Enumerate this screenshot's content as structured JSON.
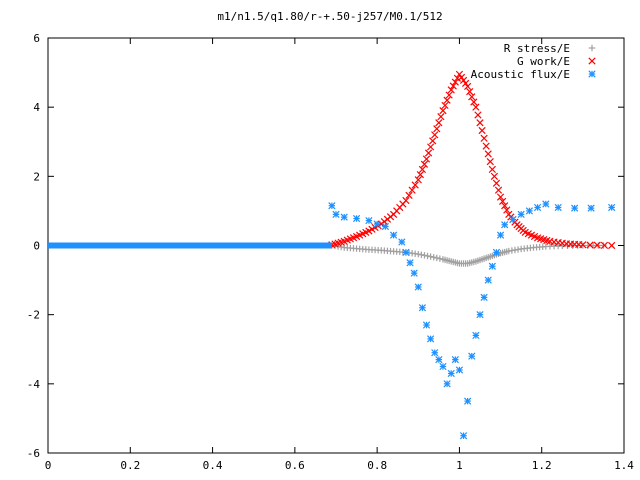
{
  "chart_data": {
    "type": "scatter",
    "title": "m1/n1.5/q1.80/r-+.50-j257/M0.1/512",
    "xlim": [
      0,
      1.4
    ],
    "ylim": [
      -6,
      6
    ],
    "x_ticks": [
      "0",
      "0.2",
      "0.4",
      "0.6",
      "0.8",
      "1",
      "1.2",
      "1.4"
    ],
    "y_ticks": [
      "6",
      "4",
      "2",
      "0",
      "-2",
      "-4",
      "-6"
    ],
    "grid": false,
    "legend_position": "top-right",
    "series": [
      {
        "name": "R stress/E",
        "marker": "plus",
        "color": "#a0a0a0",
        "points": [
          [
            0.69,
            0.0
          ],
          [
            0.72,
            -0.06
          ],
          [
            0.75,
            -0.09
          ],
          [
            0.78,
            -0.12
          ],
          [
            0.81,
            -0.14
          ],
          [
            0.84,
            -0.17
          ],
          [
            0.87,
            -0.2
          ],
          [
            0.9,
            -0.25
          ],
          [
            0.93,
            -0.32
          ],
          [
            0.96,
            -0.4
          ],
          [
            0.98,
            -0.46
          ],
          [
            1.0,
            -0.52
          ],
          [
            1.02,
            -0.52
          ],
          [
            1.04,
            -0.46
          ],
          [
            1.06,
            -0.38
          ],
          [
            1.08,
            -0.3
          ],
          [
            1.1,
            -0.22
          ],
          [
            1.12,
            -0.16
          ],
          [
            1.15,
            -0.1
          ],
          [
            1.18,
            -0.06
          ],
          [
            1.21,
            -0.03
          ],
          [
            1.25,
            -0.01
          ],
          [
            1.3,
            0.0
          ],
          [
            1.35,
            0.0
          ]
        ]
      },
      {
        "name": "G work/E",
        "marker": "cross",
        "color": "#ff0000",
        "points": [
          [
            0.69,
            0.02
          ],
          [
            0.72,
            0.12
          ],
          [
            0.75,
            0.26
          ],
          [
            0.78,
            0.42
          ],
          [
            0.81,
            0.62
          ],
          [
            0.84,
            0.9
          ],
          [
            0.87,
            1.3
          ],
          [
            0.9,
            1.9
          ],
          [
            0.92,
            2.5
          ],
          [
            0.94,
            3.2
          ],
          [
            0.96,
            3.9
          ],
          [
            0.98,
            4.5
          ],
          [
            1.0,
            4.95
          ],
          [
            1.02,
            4.6
          ],
          [
            1.04,
            4.0
          ],
          [
            1.06,
            3.1
          ],
          [
            1.08,
            2.2
          ],
          [
            1.1,
            1.4
          ],
          [
            1.12,
            0.9
          ],
          [
            1.14,
            0.6
          ],
          [
            1.16,
            0.38
          ],
          [
            1.19,
            0.22
          ],
          [
            1.22,
            0.12
          ],
          [
            1.26,
            0.05
          ],
          [
            1.3,
            0.02
          ],
          [
            1.37,
            0.0
          ]
        ]
      },
      {
        "name": "Acoustic flux/E",
        "marker": "star",
        "color": "#1e90ff",
        "points": [
          [
            0.69,
            1.15
          ],
          [
            0.7,
            0.9
          ],
          [
            0.72,
            0.82
          ],
          [
            0.75,
            0.78
          ],
          [
            0.78,
            0.72
          ],
          [
            0.8,
            0.62
          ],
          [
            0.82,
            0.55
          ],
          [
            0.84,
            0.3
          ],
          [
            0.86,
            0.1
          ],
          [
            0.87,
            -0.2
          ],
          [
            0.88,
            -0.5
          ],
          [
            0.89,
            -0.8
          ],
          [
            0.9,
            -1.2
          ],
          [
            0.91,
            -1.8
          ],
          [
            0.92,
            -2.3
          ],
          [
            0.93,
            -2.7
          ],
          [
            0.94,
            -3.1
          ],
          [
            0.95,
            -3.3
          ],
          [
            0.96,
            -3.5
          ],
          [
            0.97,
            -4.0
          ],
          [
            0.98,
            -3.7
          ],
          [
            0.99,
            -3.3
          ],
          [
            1.0,
            -3.6
          ],
          [
            1.01,
            -5.5
          ],
          [
            1.02,
            -4.5
          ],
          [
            1.03,
            -3.2
          ],
          [
            1.04,
            -2.6
          ],
          [
            1.05,
            -2.0
          ],
          [
            1.06,
            -1.5
          ],
          [
            1.07,
            -1.0
          ],
          [
            1.08,
            -0.6
          ],
          [
            1.09,
            -0.2
          ],
          [
            1.1,
            0.3
          ],
          [
            1.11,
            0.6
          ],
          [
            1.13,
            0.75
          ],
          [
            1.15,
            0.9
          ],
          [
            1.17,
            1.0
          ],
          [
            1.19,
            1.1
          ],
          [
            1.21,
            1.2
          ],
          [
            1.24,
            1.1
          ],
          [
            1.28,
            1.08
          ],
          [
            1.32,
            1.08
          ],
          [
            1.37,
            1.1
          ]
        ],
        "left_flat": [
          [
            0.0,
            0.0
          ],
          [
            0.69,
            0.0
          ]
        ]
      }
    ]
  }
}
